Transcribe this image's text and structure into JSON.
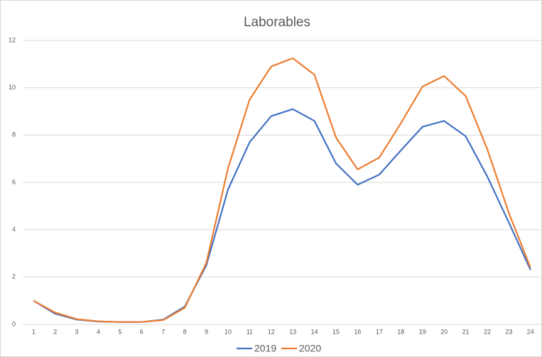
{
  "chart_data": {
    "type": "line",
    "title": "Laborables",
    "categories": [
      "1",
      "2",
      "3",
      "4",
      "5",
      "6",
      "7",
      "8",
      "9",
      "10",
      "11",
      "12",
      "13",
      "14",
      "15",
      "16",
      "17",
      "18",
      "19",
      "20",
      "21",
      "22",
      "23",
      "24"
    ],
    "series": [
      {
        "name": "2019",
        "color": "#4472c4",
        "values": [
          1.0,
          0.45,
          0.2,
          0.12,
          0.1,
          0.1,
          0.2,
          0.75,
          2.5,
          5.7,
          7.7,
          8.8,
          9.1,
          8.6,
          6.8,
          5.9,
          6.33,
          7.35,
          8.35,
          8.6,
          7.95,
          6.25,
          4.3,
          2.3
        ]
      },
      {
        "name": "2020",
        "color": "#ed7d31",
        "values": [
          1.0,
          0.5,
          0.22,
          0.13,
          0.1,
          0.1,
          0.18,
          0.7,
          2.6,
          6.6,
          9.5,
          10.9,
          11.25,
          10.55,
          7.9,
          6.55,
          7.05,
          8.5,
          10.05,
          10.5,
          9.65,
          7.4,
          4.7,
          2.4
        ]
      }
    ],
    "ylim": [
      0,
      12
    ],
    "yticks": [
      0,
      2,
      4,
      6,
      8,
      10,
      12
    ],
    "grid": true,
    "legend": "bottom"
  }
}
